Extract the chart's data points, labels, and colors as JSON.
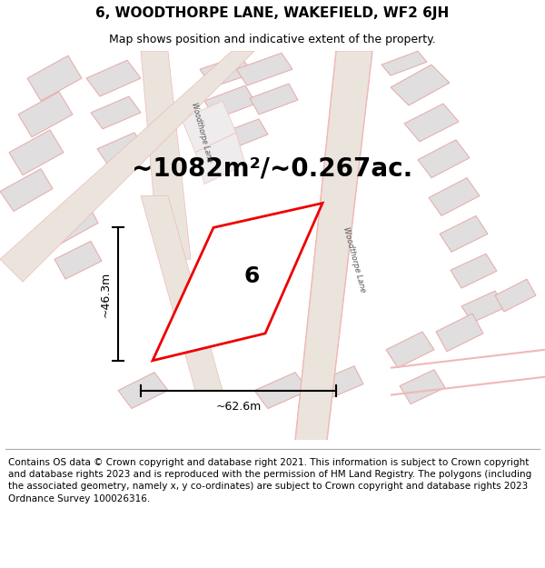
{
  "title": "6, WOODTHORPE LANE, WAKEFIELD, WF2 6JH",
  "subtitle": "Map shows position and indicative extent of the property.",
  "area_text": "~1082m²/~0.267ac.",
  "label_number": "6",
  "dim_width": "~62.6m",
  "dim_height": "~46.3m",
  "road_label": "Woodthorpe Lane",
  "road_label2": "Woodthorpe Lane",
  "footer": "Contains OS data © Crown copyright and database right 2021. This information is subject to Crown copyright and database rights 2023 and is reproduced with the permission of HM Land Registry. The polygons (including the associated geometry, namely x, y co-ordinates) are subject to Crown copyright and database rights 2023 Ordnance Survey 100026316.",
  "bg_color": "#ffffff",
  "map_bg": "#f7f5f2",
  "road_fill": "#e8e0d8",
  "road_ec": "#f0b8b8",
  "bldg_fc": "#e0dede",
  "bldg_ec": "#e8a8a8",
  "red_ec": "#ee0000",
  "red_fc": "#ffffff",
  "title_fontsize": 11,
  "subtitle_fontsize": 9,
  "area_fontsize": 20,
  "footer_fontsize": 7.5,
  "number_fontsize": 18
}
